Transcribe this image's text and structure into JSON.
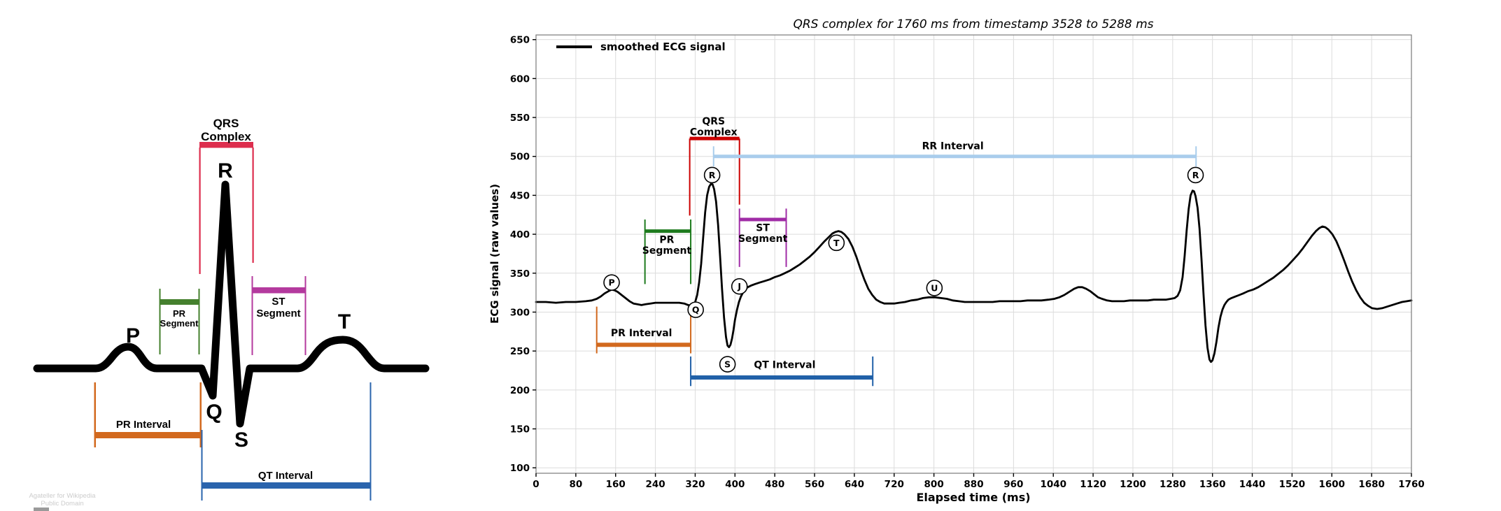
{
  "watermark": {
    "line1": "Agateller for Wikipedia",
    "line2": "Public Domain"
  },
  "schematic": {
    "wave_labels": {
      "p": "P",
      "q": "Q",
      "r": "R",
      "s": "S",
      "t": "T"
    },
    "annotations": {
      "qrs_complex": {
        "label_line1": "QRS",
        "label_line2": "Complex",
        "color": "#dd2e4e"
      },
      "pr_segment": {
        "label_line1": "PR",
        "label_line2": "Segment",
        "color": "#45802e"
      },
      "st_segment": {
        "label_line1": "ST",
        "label_line2": "Segment",
        "color": "#b43a9e"
      },
      "pr_interval": {
        "label": "PR Interval",
        "color": "#d2691e"
      },
      "qt_interval": {
        "label": "QT Interval",
        "color": "#2a64ad"
      }
    }
  },
  "chart": {
    "title": "QRS complex for 1760 ms from timestamp 3528 to 5288 ms",
    "xlabel": "Elapsed time (ms)",
    "ylabel": "ECG signal (raw values)",
    "legend": {
      "label": "smoothed ECG signal",
      "color": "#000000"
    }
  },
  "chart_data": {
    "type": "line",
    "title": "QRS complex for 1760 ms from timestamp 3528 to 5288 ms",
    "xlabel": "Elapsed time (ms)",
    "ylabel": "ECG signal (raw values)",
    "xlim": [
      0,
      1760
    ],
    "ylim": [
      93,
      656
    ],
    "xticks": [
      0,
      80,
      160,
      240,
      320,
      400,
      480,
      560,
      640,
      720,
      800,
      880,
      960,
      1040,
      1120,
      1200,
      1280,
      1360,
      1440,
      1520,
      1600,
      1680,
      1760
    ],
    "yticks": [
      100,
      150,
      200,
      250,
      300,
      350,
      400,
      450,
      500,
      550,
      600,
      650
    ],
    "grid": true,
    "grid_color": "#dcdcdc",
    "legend_position": "upper left",
    "series": [
      {
        "name": "smoothed ECG signal",
        "color": "#000000",
        "points": [
          [
            0,
            313
          ],
          [
            20,
            313
          ],
          [
            40,
            312
          ],
          [
            60,
            313
          ],
          [
            80,
            313
          ],
          [
            100,
            314
          ],
          [
            112,
            315
          ],
          [
            122,
            317
          ],
          [
            130,
            320
          ],
          [
            138,
            324
          ],
          [
            146,
            327
          ],
          [
            152,
            329
          ],
          [
            158,
            328
          ],
          [
            164,
            326
          ],
          [
            172,
            322
          ],
          [
            180,
            318
          ],
          [
            188,
            314
          ],
          [
            196,
            311
          ],
          [
            204,
            310
          ],
          [
            212,
            309
          ],
          [
            220,
            310
          ],
          [
            230,
            311
          ],
          [
            240,
            312
          ],
          [
            252,
            312
          ],
          [
            264,
            312
          ],
          [
            276,
            312
          ],
          [
            288,
            312
          ],
          [
            298,
            311
          ],
          [
            306,
            309
          ],
          [
            312,
            308
          ],
          [
            316,
            309
          ],
          [
            320,
            313
          ],
          [
            324,
            322
          ],
          [
            328,
            338
          ],
          [
            332,
            362
          ],
          [
            336,
            395
          ],
          [
            340,
            428
          ],
          [
            344,
            450
          ],
          [
            348,
            461
          ],
          [
            352,
            465
          ],
          [
            355,
            464
          ],
          [
            358,
            458
          ],
          [
            362,
            442
          ],
          [
            366,
            412
          ],
          [
            370,
            372
          ],
          [
            374,
            330
          ],
          [
            378,
            293
          ],
          [
            382,
            268
          ],
          [
            385,
            257
          ],
          [
            388,
            255
          ],
          [
            391,
            258
          ],
          [
            394,
            266
          ],
          [
            397,
            277
          ],
          [
            400,
            290
          ],
          [
            404,
            303
          ],
          [
            408,
            313
          ],
          [
            412,
            320
          ],
          [
            416,
            325
          ],
          [
            420,
            329
          ],
          [
            426,
            332
          ],
          [
            432,
            334
          ],
          [
            440,
            336
          ],
          [
            450,
            338
          ],
          [
            460,
            340
          ],
          [
            470,
            342
          ],
          [
            480,
            345
          ],
          [
            490,
            347
          ],
          [
            500,
            350
          ],
          [
            510,
            353
          ],
          [
            520,
            357
          ],
          [
            530,
            361
          ],
          [
            540,
            366
          ],
          [
            550,
            371
          ],
          [
            560,
            377
          ],
          [
            570,
            384
          ],
          [
            580,
            391
          ],
          [
            588,
            396
          ],
          [
            596,
            401
          ],
          [
            602,
            403
          ],
          [
            608,
            404
          ],
          [
            614,
            403
          ],
          [
            620,
            400
          ],
          [
            628,
            394
          ],
          [
            636,
            384
          ],
          [
            644,
            371
          ],
          [
            652,
            356
          ],
          [
            660,
            342
          ],
          [
            668,
            330
          ],
          [
            676,
            322
          ],
          [
            684,
            316
          ],
          [
            692,
            313
          ],
          [
            700,
            311
          ],
          [
            710,
            311
          ],
          [
            720,
            311
          ],
          [
            730,
            312
          ],
          [
            742,
            313
          ],
          [
            754,
            315
          ],
          [
            766,
            316
          ],
          [
            778,
            318
          ],
          [
            790,
            319
          ],
          [
            802,
            319
          ],
          [
            814,
            318
          ],
          [
            826,
            317
          ],
          [
            838,
            315
          ],
          [
            850,
            314
          ],
          [
            862,
            313
          ],
          [
            876,
            313
          ],
          [
            890,
            313
          ],
          [
            904,
            313
          ],
          [
            918,
            313
          ],
          [
            932,
            314
          ],
          [
            946,
            314
          ],
          [
            960,
            314
          ],
          [
            974,
            314
          ],
          [
            988,
            315
          ],
          [
            1002,
            315
          ],
          [
            1016,
            315
          ],
          [
            1030,
            316
          ],
          [
            1042,
            317
          ],
          [
            1052,
            319
          ],
          [
            1062,
            322
          ],
          [
            1072,
            326
          ],
          [
            1082,
            330
          ],
          [
            1090,
            332
          ],
          [
            1098,
            332
          ],
          [
            1106,
            330
          ],
          [
            1114,
            327
          ],
          [
            1122,
            323
          ],
          [
            1130,
            319
          ],
          [
            1138,
            317
          ],
          [
            1148,
            315
          ],
          [
            1158,
            314
          ],
          [
            1170,
            314
          ],
          [
            1182,
            314
          ],
          [
            1194,
            315
          ],
          [
            1206,
            315
          ],
          [
            1218,
            315
          ],
          [
            1230,
            315
          ],
          [
            1242,
            316
          ],
          [
            1254,
            316
          ],
          [
            1266,
            316
          ],
          [
            1276,
            317
          ],
          [
            1284,
            318
          ],
          [
            1290,
            321
          ],
          [
            1295,
            328
          ],
          [
            1300,
            345
          ],
          [
            1304,
            372
          ],
          [
            1308,
            404
          ],
          [
            1312,
            432
          ],
          [
            1316,
            450
          ],
          [
            1320,
            456
          ],
          [
            1323,
            455
          ],
          [
            1326,
            449
          ],
          [
            1330,
            434
          ],
          [
            1334,
            407
          ],
          [
            1338,
            368
          ],
          [
            1342,
            323
          ],
          [
            1346,
            283
          ],
          [
            1350,
            254
          ],
          [
            1354,
            239
          ],
          [
            1357,
            236
          ],
          [
            1360,
            238
          ],
          [
            1364,
            247
          ],
          [
            1368,
            262
          ],
          [
            1372,
            280
          ],
          [
            1376,
            294
          ],
          [
            1380,
            303
          ],
          [
            1384,
            309
          ],
          [
            1388,
            313
          ],
          [
            1392,
            316
          ],
          [
            1398,
            318
          ],
          [
            1406,
            320
          ],
          [
            1414,
            322
          ],
          [
            1422,
            324
          ],
          [
            1432,
            327
          ],
          [
            1442,
            329
          ],
          [
            1452,
            332
          ],
          [
            1462,
            336
          ],
          [
            1472,
            340
          ],
          [
            1482,
            344
          ],
          [
            1492,
            349
          ],
          [
            1502,
            354
          ],
          [
            1512,
            360
          ],
          [
            1522,
            367
          ],
          [
            1532,
            374
          ],
          [
            1542,
            382
          ],
          [
            1552,
            391
          ],
          [
            1560,
            398
          ],
          [
            1568,
            404
          ],
          [
            1575,
            408
          ],
          [
            1581,
            410
          ],
          [
            1587,
            409
          ],
          [
            1593,
            406
          ],
          [
            1601,
            400
          ],
          [
            1609,
            391
          ],
          [
            1617,
            379
          ],
          [
            1625,
            366
          ],
          [
            1633,
            352
          ],
          [
            1641,
            339
          ],
          [
            1649,
            328
          ],
          [
            1657,
            319
          ],
          [
            1665,
            312
          ],
          [
            1673,
            308
          ],
          [
            1681,
            305
          ],
          [
            1691,
            304
          ],
          [
            1701,
            305
          ],
          [
            1711,
            307
          ],
          [
            1721,
            309
          ],
          [
            1731,
            311
          ],
          [
            1741,
            313
          ],
          [
            1751,
            314
          ],
          [
            1760,
            315
          ]
        ]
      }
    ],
    "point_markers": [
      {
        "label": "P",
        "x": 152,
        "y": 338
      },
      {
        "label": "Q",
        "x": 321,
        "y": 303
      },
      {
        "label": "R",
        "x": 354,
        "y": 476
      },
      {
        "label": "S",
        "x": 385,
        "y": 233
      },
      {
        "label": "J",
        "x": 409,
        "y": 333
      },
      {
        "label": "T",
        "x": 604,
        "y": 389
      },
      {
        "label": "U",
        "x": 801,
        "y": 331
      },
      {
        "label": "R",
        "x": 1326,
        "y": 476
      }
    ],
    "intervals": [
      {
        "name": "qrs-complex",
        "color": "#cc0000",
        "bar": {
          "x1": 309,
          "x2": 409,
          "v": 523,
          "lw": 5
        },
        "ticks": [
          {
            "x": 309,
            "v1": 523,
            "v2": 424
          },
          {
            "x": 409,
            "v1": 523,
            "v2": 438
          }
        ],
        "labels": [
          {
            "text": "QRS",
            "x": 357,
            "v": 541
          },
          {
            "text": "Complex",
            "x": 357,
            "v": 527
          }
        ]
      },
      {
        "name": "rr-interval",
        "color": "#a9cdec",
        "bar": {
          "x1": 357,
          "x2": 1327,
          "v": 500,
          "lw": 5
        },
        "ticks": [
          {
            "x": 357,
            "v1": 513,
            "v2": 487
          },
          {
            "x": 1327,
            "v1": 513,
            "v2": 487
          }
        ],
        "labels": [
          {
            "text": "RR Interval",
            "x": 838,
            "v": 509
          }
        ]
      },
      {
        "name": "pr-segment",
        "color": "#1e7b1e",
        "bar": {
          "x1": 219,
          "x2": 311,
          "v": 404,
          "lw": 5
        },
        "ticks": [
          {
            "x": 219,
            "v1": 419,
            "v2": 336
          },
          {
            "x": 311,
            "v1": 419,
            "v2": 336
          }
        ],
        "labels": [
          {
            "text": "PR",
            "x": 263,
            "v": 389
          },
          {
            "text": "Segment",
            "x": 263,
            "v": 375
          }
        ]
      },
      {
        "name": "st-segment",
        "color": "#a02ca6",
        "bar": {
          "x1": 409,
          "x2": 503,
          "v": 419,
          "lw": 5
        },
        "ticks": [
          {
            "x": 409,
            "v1": 433,
            "v2": 358
          },
          {
            "x": 503,
            "v1": 433,
            "v2": 358
          }
        ],
        "labels": [
          {
            "text": "ST",
            "x": 456,
            "v": 404
          },
          {
            "text": "Segment",
            "x": 456,
            "v": 390
          }
        ]
      },
      {
        "name": "pr-interval",
        "color": "#d2691e",
        "bar": {
          "x1": 122,
          "x2": 311,
          "v": 258,
          "lw": 6
        },
        "ticks": [
          {
            "x": 122,
            "v1": 307,
            "v2": 247
          },
          {
            "x": 311,
            "v1": 307,
            "v2": 247
          }
        ],
        "labels": [
          {
            "text": "PR Interval",
            "x": 212,
            "v": 269
          }
        ]
      },
      {
        "name": "qt-interval",
        "color": "#2161a8",
        "bar": {
          "x1": 311,
          "x2": 677,
          "v": 216,
          "lw": 6
        },
        "ticks": [
          {
            "x": 311,
            "v1": 243,
            "v2": 205
          },
          {
            "x": 677,
            "v1": 243,
            "v2": 205
          }
        ],
        "labels": [
          {
            "text": "QT Interval",
            "x": 500,
            "v": 228
          }
        ]
      }
    ]
  }
}
